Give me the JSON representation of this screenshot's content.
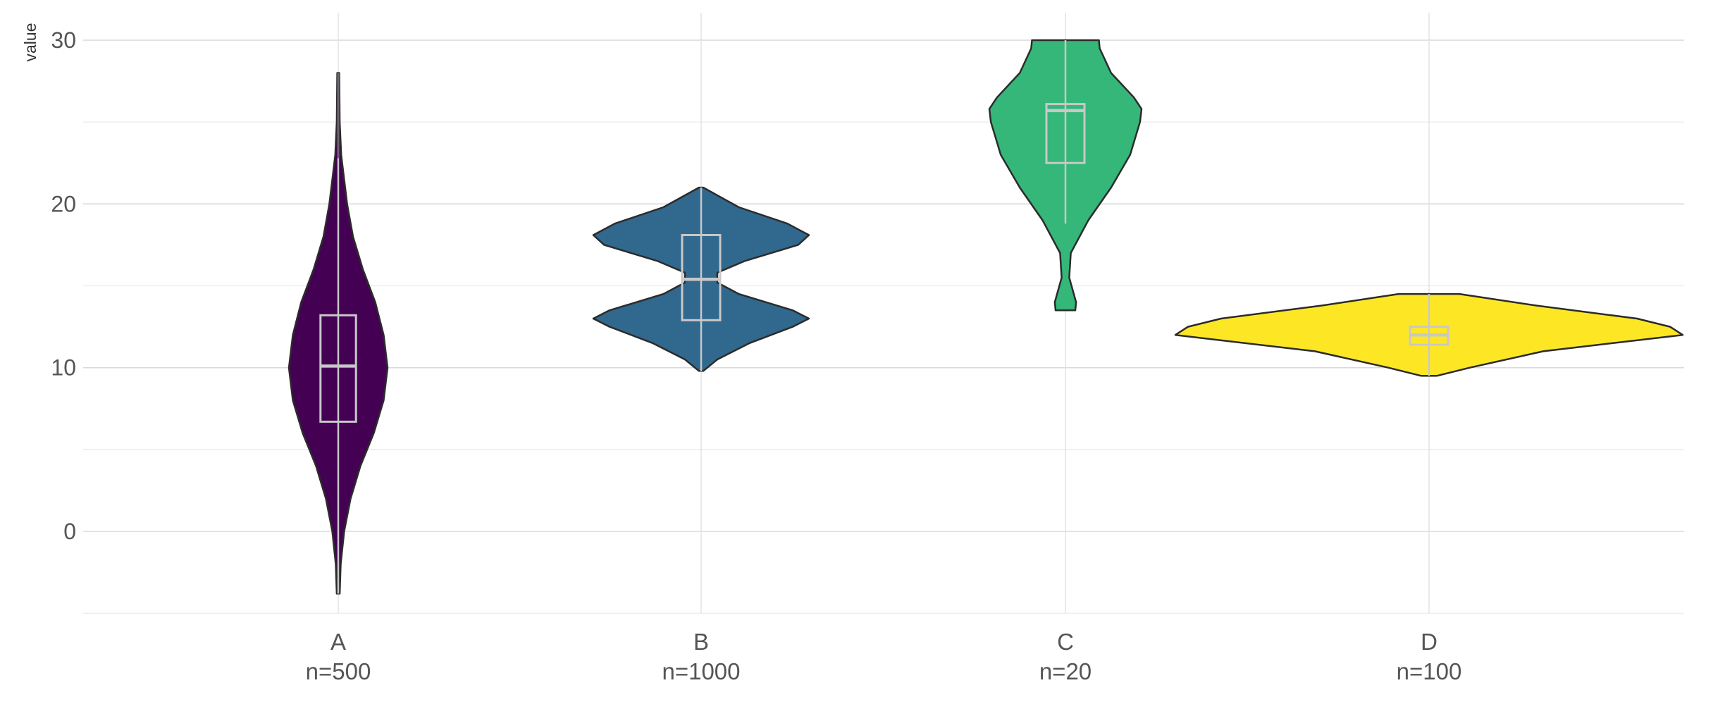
{
  "chart_data": {
    "type": "violin",
    "title": "",
    "xlabel": "",
    "ylabel": "value",
    "ylim": [
      -5,
      31.5
    ],
    "y_ticks": [
      0,
      10,
      20,
      30
    ],
    "grid": true,
    "legend": "none",
    "groups": [
      {
        "label": "A",
        "n_label": "n=500",
        "color": "#440154",
        "min": -3.8,
        "q1": 6.7,
        "median": 10.1,
        "q3": 13.2,
        "max": 28.0,
        "whisker_low": -3.8,
        "whisker_high": 22.8,
        "density": [
          [
            -3.8,
            0.03
          ],
          [
            -2,
            0.05
          ],
          [
            0,
            0.12
          ],
          [
            2,
            0.25
          ],
          [
            4,
            0.45
          ],
          [
            6,
            0.72
          ],
          [
            8,
            0.92
          ],
          [
            10,
            1.0
          ],
          [
            12,
            0.92
          ],
          [
            14,
            0.75
          ],
          [
            16,
            0.5
          ],
          [
            18,
            0.3
          ],
          [
            20,
            0.18
          ],
          [
            22,
            0.1
          ],
          [
            23,
            0.06
          ],
          [
            25,
            0.03
          ],
          [
            28,
            0.02
          ]
        ]
      },
      {
        "label": "B",
        "n_label": "n=1000",
        "color": "#31688e",
        "min": 9.8,
        "q1": 12.9,
        "median": 15.4,
        "q3": 18.1,
        "max": 21.0,
        "whisker_low": 9.8,
        "whisker_high": 21.0,
        "density": [
          [
            9.8,
            0.02
          ],
          [
            10.5,
            0.15
          ],
          [
            11.5,
            0.45
          ],
          [
            12.5,
            0.85
          ],
          [
            13,
            1.0
          ],
          [
            13.5,
            0.85
          ],
          [
            14.5,
            0.35
          ],
          [
            15.2,
            0.15
          ],
          [
            15.8,
            0.15
          ],
          [
            16.5,
            0.4
          ],
          [
            17.5,
            0.9
          ],
          [
            18.1,
            1.0
          ],
          [
            18.8,
            0.8
          ],
          [
            19.8,
            0.35
          ],
          [
            21,
            0.02
          ]
        ]
      },
      {
        "label": "C",
        "n_label": "n=20",
        "color": "#35b779",
        "min": 13.5,
        "q1": 22.5,
        "median": 25.7,
        "q3": 26.1,
        "max": 30.0,
        "whisker_low": 18.8,
        "whisker_high": 30.0,
        "density": [
          [
            13.5,
            0.13
          ],
          [
            14,
            0.14
          ],
          [
            15.5,
            0.05
          ],
          [
            17,
            0.07
          ],
          [
            19,
            0.3
          ],
          [
            21,
            0.6
          ],
          [
            23,
            0.85
          ],
          [
            25,
            0.98
          ],
          [
            25.8,
            1.0
          ],
          [
            26.5,
            0.9
          ],
          [
            28,
            0.6
          ],
          [
            29.5,
            0.45
          ],
          [
            30,
            0.44
          ]
        ]
      },
      {
        "label": "D",
        "n_label": "n=100",
        "color": "#fde725",
        "min": 9.5,
        "q1": 11.4,
        "median": 12.0,
        "q3": 12.5,
        "max": 14.5,
        "whisker_low": 9.5,
        "whisker_high": 14.5,
        "density": [
          [
            9.5,
            0.03
          ],
          [
            10,
            0.16
          ],
          [
            11,
            0.45
          ],
          [
            12,
            1.0
          ],
          [
            12.5,
            0.95
          ],
          [
            13,
            0.82
          ],
          [
            13.8,
            0.42
          ],
          [
            14.5,
            0.12
          ]
        ]
      }
    ]
  }
}
